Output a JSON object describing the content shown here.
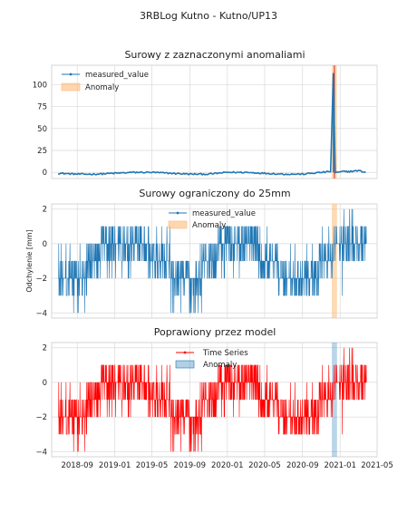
{
  "figure": {
    "title": "3RBLog Kutno - Kutno/UP13",
    "x_tick_labels": [
      "2018-09",
      "2019-01",
      "2019-05",
      "2019-09",
      "2020-01",
      "2020-05",
      "2020-09",
      "2021-01",
      "2021-05"
    ]
  },
  "colors": {
    "raw_series": "#1f77b4",
    "anomaly_fill": "#ffbb78",
    "anomaly_line": "#d62728",
    "model_series": "#ff0000",
    "model_anomaly_fill": "#1f77b4",
    "grid": "#d9d9d9",
    "axes_edge": "#cccccc"
  },
  "chart_data": [
    {
      "type": "line",
      "title": "Surowy z zaznaczonymi anomaliami",
      "xlabel": "",
      "ylabel": "",
      "xlim": [
        "2018-06-10",
        "2021-05-01"
      ],
      "ylim": [
        -7,
        122
      ],
      "y_ticks": [
        0,
        25,
        50,
        75,
        100
      ],
      "y_tick_labels": [
        "0",
        "25",
        "50",
        "75",
        "100"
      ],
      "grid": true,
      "legend": {
        "placement": "top-left",
        "entries": [
          "measured_value",
          "Anomaly"
        ]
      },
      "series": [
        {
          "name": "measured_value",
          "x": [
            "2018-07-01",
            "2018-09-01",
            "2018-11-01",
            "2019-01-01",
            "2019-03-01",
            "2019-05-01",
            "2019-07-01",
            "2019-09-01",
            "2019-11-01",
            "2020-01-01",
            "2020-03-01",
            "2020-05-01",
            "2020-07-01",
            "2020-09-01",
            "2020-11-01",
            "2020-12-01",
            "2020-12-10",
            "2020-12-16",
            "2020-12-28",
            "2021-01-10",
            "2021-02-01",
            "2021-03-01",
            "2021-03-25"
          ],
          "y": [
            -1,
            -2,
            -2,
            -1,
            0,
            0,
            -1,
            -2,
            -2,
            0,
            0,
            -1,
            -2,
            -2,
            0,
            1,
            113,
            0,
            0,
            1,
            1,
            2,
            0
          ]
        }
      ],
      "anomalies": [
        {
          "start": "2020-12-05",
          "end": "2020-12-22"
        }
      ]
    },
    {
      "type": "line",
      "title": "Surowy ograniczony do 25mm",
      "xlabel": "",
      "ylabel": "Odchylenie [mm]",
      "xlim": [
        "2018-06-10",
        "2021-05-01"
      ],
      "ylim": [
        -4.3,
        2.3
      ],
      "y_ticks": [
        -4,
        -2,
        0,
        2
      ],
      "y_tick_labels": [
        "−4",
        "−2",
        "0",
        "2"
      ],
      "grid": true,
      "legend": {
        "placement": "top-center",
        "entries": [
          "measured_value",
          "Anomaly"
        ]
      },
      "series": [
        {
          "name": "measured_value",
          "segments": [
            {
              "start": "2018-07-01",
              "end": "2018-08-05",
              "base": -2,
              "low": -3,
              "high": 0
            },
            {
              "start": "2018-08-05",
              "end": "2018-10-05",
              "base": -2,
              "low": -4,
              "high": 0
            },
            {
              "start": "2018-10-05",
              "end": "2018-11-15",
              "base": -1,
              "low": -2,
              "high": 0
            },
            {
              "start": "2018-11-15",
              "end": "2019-04-20",
              "base": 0,
              "low": -2,
              "high": 1
            },
            {
              "start": "2019-04-20",
              "end": "2019-07-01",
              "base": -1,
              "low": -2,
              "high": 1
            },
            {
              "start": "2019-07-01",
              "end": "2019-10-10",
              "base": -2,
              "low": -4,
              "high": 0
            },
            {
              "start": "2019-10-10",
              "end": "2019-12-01",
              "base": -1,
              "low": -2,
              "high": 0
            },
            {
              "start": "2019-12-01",
              "end": "2020-04-10",
              "base": 0,
              "low": -2,
              "high": 1
            },
            {
              "start": "2020-04-10",
              "end": "2020-06-15",
              "base": -1,
              "low": -2,
              "high": 1
            },
            {
              "start": "2020-06-15",
              "end": "2020-10-25",
              "base": -2,
              "low": -3,
              "high": 0
            },
            {
              "start": "2020-10-25",
              "end": "2020-12-10",
              "base": -1,
              "low": -2,
              "high": 1
            },
            {
              "start": "2020-12-10",
              "end": "2021-01-15",
              "base": 0,
              "low": -3,
              "high": 2
            },
            {
              "start": "2021-01-15",
              "end": "2021-03-28",
              "base": 0,
              "low": -1,
              "high": 2
            }
          ]
        }
      ],
      "anomalies": [
        {
          "start": "2020-12-05",
          "end": "2020-12-22"
        }
      ]
    },
    {
      "type": "line",
      "title": "Poprawiony przez model",
      "xlabel": "",
      "ylabel": "",
      "xlim": [
        "2018-06-10",
        "2021-05-01"
      ],
      "ylim": [
        -4.3,
        2.3
      ],
      "y_ticks": [
        -4,
        -2,
        0,
        2
      ],
      "y_tick_labels": [
        "−4",
        "−2",
        "0",
        "2"
      ],
      "grid": true,
      "legend": {
        "placement": "top-center",
        "entries": [
          "Time Series",
          "Anomaly"
        ]
      },
      "series": [
        {
          "name": "Time Series",
          "segments": [
            {
              "start": "2018-07-01",
              "end": "2018-08-05",
              "base": -2,
              "low": -3,
              "high": 0
            },
            {
              "start": "2018-08-05",
              "end": "2018-10-05",
              "base": -2,
              "low": -4,
              "high": 0
            },
            {
              "start": "2018-10-05",
              "end": "2018-11-15",
              "base": -1,
              "low": -2,
              "high": 0
            },
            {
              "start": "2018-11-15",
              "end": "2019-04-20",
              "base": 0,
              "low": -2,
              "high": 1
            },
            {
              "start": "2019-04-20",
              "end": "2019-07-01",
              "base": -1,
              "low": -2,
              "high": 1
            },
            {
              "start": "2019-07-01",
              "end": "2019-10-10",
              "base": -2,
              "low": -4,
              "high": 0
            },
            {
              "start": "2019-10-10",
              "end": "2019-12-01",
              "base": -1,
              "low": -2,
              "high": 0
            },
            {
              "start": "2019-12-01",
              "end": "2020-04-10",
              "base": 0,
              "low": -2,
              "high": 1
            },
            {
              "start": "2020-04-10",
              "end": "2020-06-15",
              "base": -1,
              "low": -2,
              "high": 1
            },
            {
              "start": "2020-06-15",
              "end": "2020-10-25",
              "base": -2,
              "low": -3,
              "high": 0
            },
            {
              "start": "2020-10-25",
              "end": "2020-12-10",
              "base": -1,
              "low": -2,
              "high": 1
            },
            {
              "start": "2020-12-10",
              "end": "2021-01-15",
              "base": 0,
              "low": -3,
              "high": 2
            },
            {
              "start": "2021-01-15",
              "end": "2021-03-28",
              "base": 0,
              "low": -1,
              "high": 2
            }
          ]
        }
      ],
      "anomalies": [
        {
          "start": "2020-12-05",
          "end": "2020-12-22"
        }
      ]
    }
  ]
}
